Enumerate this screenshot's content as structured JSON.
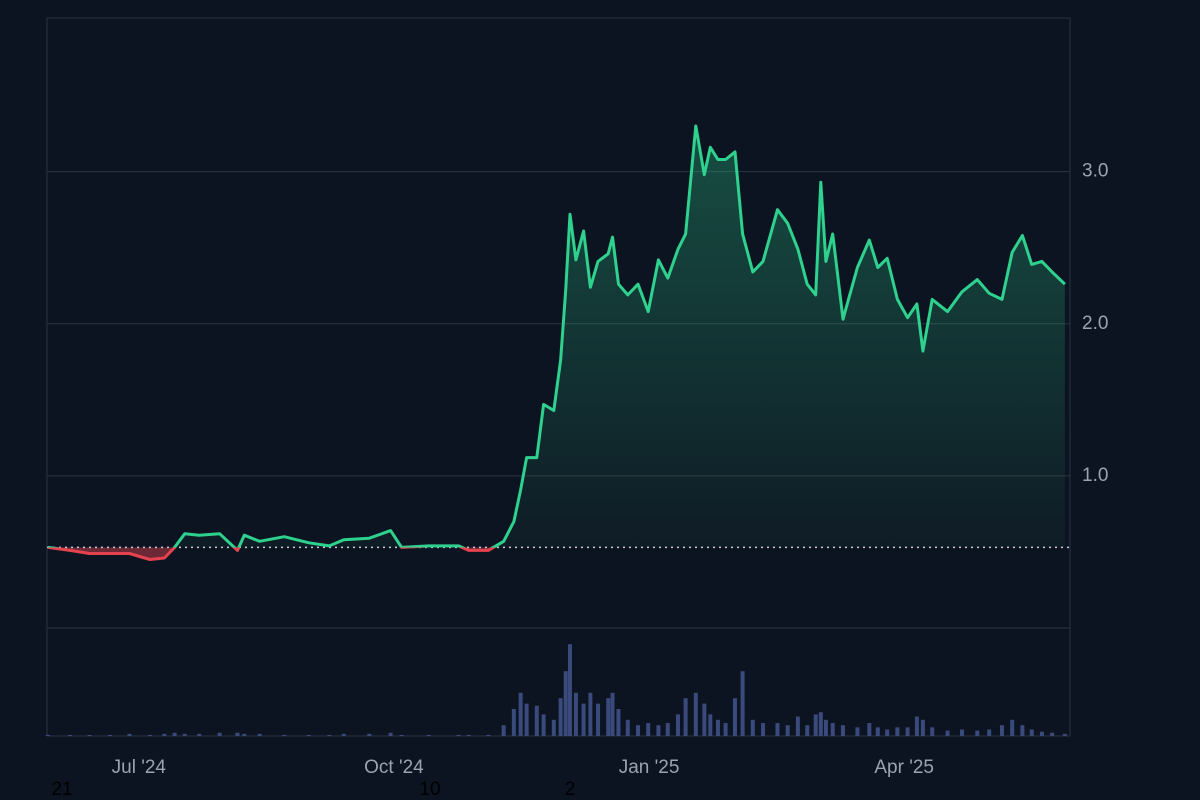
{
  "chart_data": {
    "type": "line",
    "x": [
      4.93,
      5.19,
      5.42,
      5.66,
      5.89,
      6.13,
      6.3,
      6.42,
      6.54,
      6.71,
      6.95,
      7.16,
      7.24,
      7.42,
      7.71,
      8.0,
      8.24,
      8.41,
      8.71,
      8.96,
      9.09,
      9.41,
      9.76,
      9.88,
      10.11,
      10.29,
      10.41,
      10.49,
      10.56,
      10.68,
      10.76,
      10.88,
      10.96,
      11.02,
      11.07,
      11.14,
      11.23,
      11.31,
      11.4,
      11.52,
      11.57,
      11.64,
      11.75,
      11.87,
      11.99,
      12.11,
      12.22,
      12.34,
      12.43,
      12.55,
      12.65,
      12.72,
      12.81,
      12.9,
      13.01,
      13.1,
      13.22,
      13.34,
      13.51,
      13.63,
      13.75,
      13.86,
      13.96,
      14.02,
      14.08,
      14.16,
      14.28,
      14.45,
      14.59,
      14.69,
      14.8,
      14.92,
      15.04,
      15.15,
      15.22,
      15.33,
      15.51,
      15.68,
      15.86,
      16.0,
      16.15,
      16.27,
      16.39,
      16.5,
      16.62,
      16.74,
      16.89
    ],
    "values": [
      0.53,
      0.51,
      0.49,
      0.49,
      0.49,
      0.45,
      0.46,
      0.53,
      0.62,
      0.61,
      0.62,
      0.51,
      0.61,
      0.57,
      0.6,
      0.56,
      0.54,
      0.58,
      0.59,
      0.64,
      0.53,
      0.54,
      0.54,
      0.51,
      0.51,
      0.57,
      0.7,
      0.91,
      1.12,
      1.12,
      1.47,
      1.43,
      1.76,
      2.22,
      2.72,
      2.42,
      2.61,
      2.24,
      2.41,
      2.46,
      2.57,
      2.26,
      2.19,
      2.26,
      2.08,
      2.42,
      2.3,
      2.49,
      2.59,
      3.3,
      2.98,
      3.16,
      3.08,
      3.08,
      3.13,
      2.59,
      2.34,
      2.41,
      2.75,
      2.66,
      2.49,
      2.26,
      2.19,
      2.93,
      2.41,
      2.59,
      2.03,
      2.37,
      2.55,
      2.37,
      2.43,
      2.16,
      2.04,
      2.13,
      1.82,
      2.16,
      2.08,
      2.21,
      2.29,
      2.2,
      2.16,
      2.47,
      2.58,
      2.39,
      2.41,
      2.34,
      2.26
    ],
    "volume": [
      1,
      1,
      1,
      1,
      2,
      1,
      2,
      3,
      2,
      2,
      3,
      3,
      2,
      2,
      1,
      1,
      1,
      2,
      2,
      3,
      1,
      1,
      1,
      1,
      1,
      10,
      25,
      40,
      30,
      28,
      20,
      15,
      35,
      60,
      85,
      40,
      30,
      40,
      30,
      35,
      40,
      25,
      15,
      10,
      12,
      10,
      12,
      20,
      35,
      40,
      30,
      20,
      15,
      12,
      35,
      60,
      15,
      12,
      12,
      10,
      18,
      10,
      20,
      22,
      15,
      12,
      10,
      8,
      12,
      8,
      6,
      8,
      8,
      18,
      15,
      8,
      5,
      6,
      5,
      6,
      10,
      15,
      10,
      6,
      4,
      3,
      2
    ],
    "volume_ylim": [
      0,
      100
    ],
    "baseline": 0.53,
    "up_color": "#2ed18e",
    "down_color": "#e5424f",
    "volume_color": "#3a4a7c",
    "xlim": [
      4.92,
      16.95
    ],
    "xticks": [
      {
        "value": 6,
        "label": "Jul '24"
      },
      {
        "value": 9,
        "label": "Oct '24"
      },
      {
        "value": 12,
        "label": "Jan '25"
      },
      {
        "value": 15,
        "label": "Apr '25"
      }
    ],
    "ylim": [
      0,
      4.01
    ],
    "yticks": [
      {
        "value": 1,
        "label": "1.0"
      },
      {
        "value": 2,
        "label": "2.0"
      },
      {
        "value": 3,
        "label": "3.0"
      }
    ],
    "grid": true,
    "footer_labels": [
      "21",
      "10",
      "2"
    ]
  }
}
